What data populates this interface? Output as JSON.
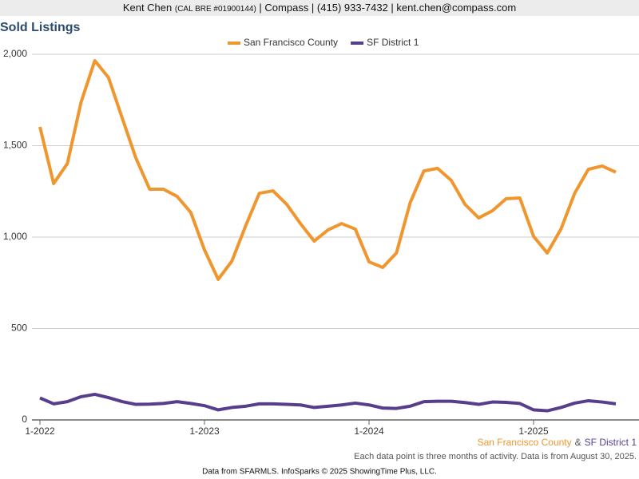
{
  "header": {
    "name": "Kent Chen",
    "license": "(CAL BRE #01900144)",
    "contact": "| Compass | (415) 933-7432 | kent.chen@compass.com"
  },
  "chart_data": {
    "type": "line",
    "title": "Sold Listings",
    "categories": [
      "1-2022",
      null,
      null,
      null,
      null,
      null,
      null,
      null,
      null,
      null,
      null,
      null,
      "1-2023",
      null,
      null,
      null,
      null,
      null,
      null,
      null,
      null,
      null,
      null,
      null,
      "1-2024",
      null,
      null,
      null,
      null,
      null,
      null,
      null,
      null,
      null,
      null,
      null,
      "1-2025",
      null,
      null,
      null,
      null,
      null,
      null
    ],
    "series": [
      {
        "name": "San Francisco County",
        "color": "#f0962e",
        "values": [
          1603,
          1293,
          1402,
          1738,
          1965,
          1873,
          1651,
          1432,
          1262,
          1262,
          1223,
          1135,
          930,
          769,
          869,
          1061,
          1240,
          1253,
          1179,
          1074,
          978,
          1039,
          1074,
          1044,
          865,
          834,
          913,
          1188,
          1362,
          1376,
          1310,
          1179,
          1105,
          1144,
          1210,
          1214,
          1004,
          913,
          1044,
          1240,
          1371,
          1389,
          1355
        ]
      },
      {
        "name": "SF District 1",
        "color": "#573e8d",
        "values": [
          120,
          88,
          100,
          127,
          140,
          122,
          100,
          85,
          86,
          90,
          100,
          90,
          78,
          55,
          68,
          75,
          88,
          88,
          85,
          82,
          68,
          75,
          82,
          92,
          82,
          65,
          63,
          75,
          100,
          102,
          102,
          95,
          85,
          98,
          96,
          90,
          55,
          50,
          68,
          92,
          105,
          98,
          88
        ]
      }
    ],
    "ylim": [
      0,
      2000
    ],
    "yticks": [
      0,
      500,
      {
        "value": 1000,
        "label": "1,000"
      },
      {
        "value": 1500,
        "label": "1,500"
      },
      {
        "value": 2000,
        "label": "2,000"
      }
    ],
    "grid": true,
    "legend": "top",
    "series_caption_separator": "&",
    "note": "Each data point is three months of activity. Data is from August 30, 2025.",
    "footer": "Data from SFARMLS. InfoSparks © 2025 ShowingTime Plus, LLC."
  }
}
